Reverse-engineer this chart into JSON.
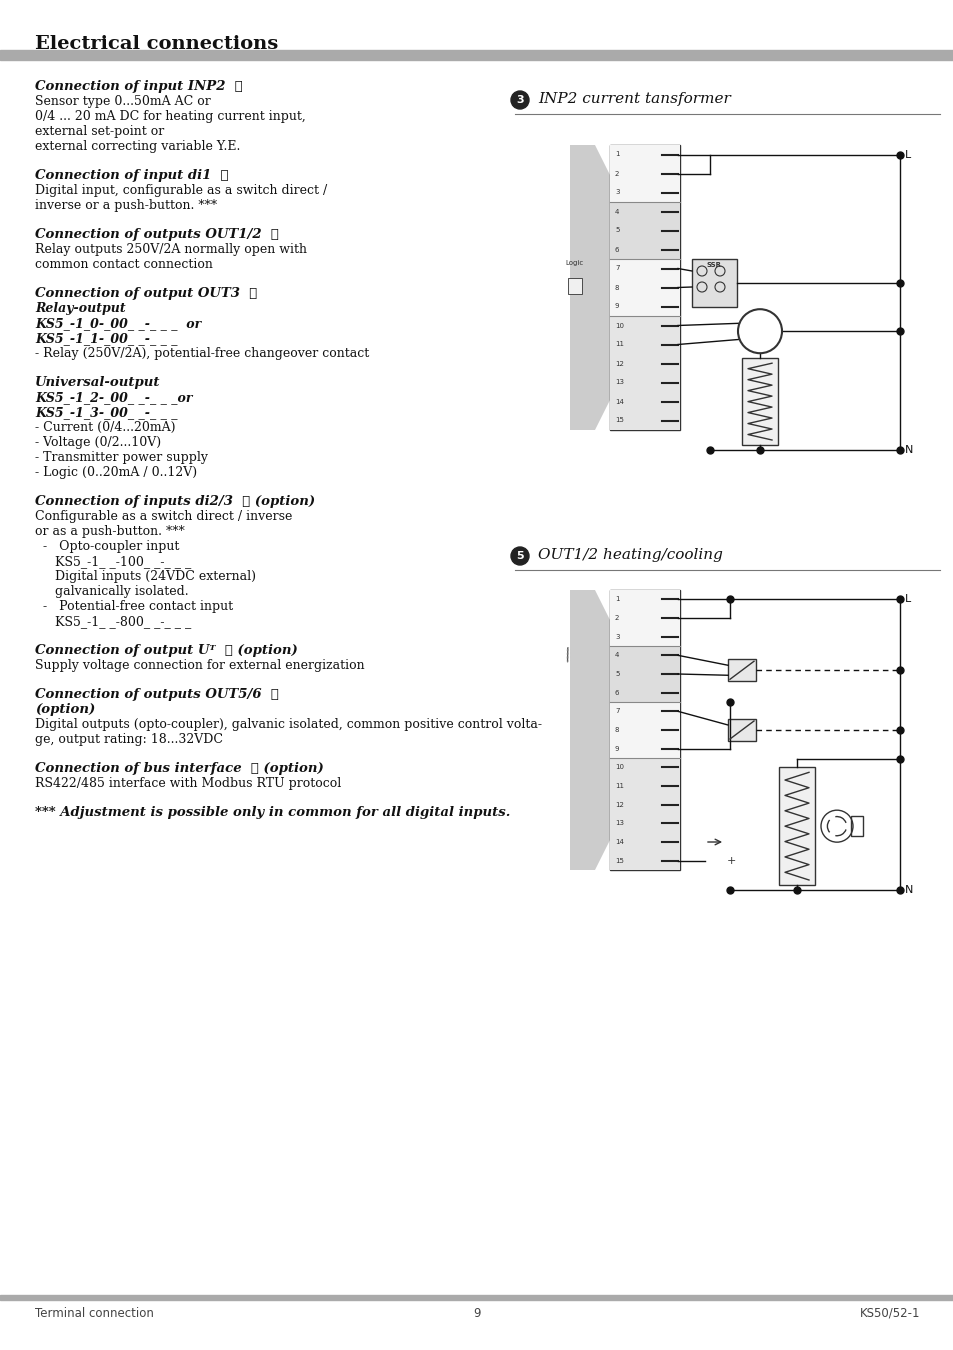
{
  "title": "Electrical connections",
  "footer_left": "Terminal connection",
  "footer_center": "9",
  "footer_right": "KS50/52-1",
  "bg_color": "#ffffff",
  "header_bar_color": "#aaaaaa",
  "footer_bar_color": "#aaaaaa",
  "diagram1_title_num": "3",
  "diagram1_title_text": "INP2 current tansformer",
  "diagram2_title_num": "5",
  "diagram2_title_text": "OUT1/2 heating/cooling",
  "left_col_blocks": [
    {
      "lines": [
        {
          "text": "Connection of input INP2  ④",
          "bold_italic": true,
          "size": 9.5,
          "indent": 0
        },
        {
          "text": "Sensor type 0...50mA AC or",
          "bold_italic": false,
          "size": 9.0,
          "indent": 0
        },
        {
          "text": "0/4 ... 20 mA DC for heating current input,",
          "bold_italic": false,
          "size": 9.0,
          "indent": 0
        },
        {
          "text": "external set-point or",
          "bold_italic": false,
          "size": 9.0,
          "indent": 0
        },
        {
          "text": "external correcting variable Y.E.",
          "bold_italic": false,
          "size": 9.0,
          "indent": 0
        }
      ]
    },
    {
      "lines": [
        {
          "text": "Connection of input di1  ⑤",
          "bold_italic": true,
          "size": 9.5,
          "indent": 0
        },
        {
          "text": "Digital input, configurable as a switch direct /",
          "bold_italic": false,
          "size": 9.0,
          "indent": 0
        },
        {
          "text": "inverse or a push-button. ***",
          "bold_italic": false,
          "size": 9.0,
          "indent": 0
        }
      ]
    },
    {
      "lines": [
        {
          "text": "Connection of outputs OUT1/2  ⑥",
          "bold_italic": true,
          "size": 9.5,
          "indent": 0
        },
        {
          "text": "Relay outputs 250V/2A normally open with",
          "bold_italic": false,
          "size": 9.0,
          "indent": 0
        },
        {
          "text": "common contact connection",
          "bold_italic": false,
          "size": 9.0,
          "indent": 0
        }
      ]
    },
    {
      "lines": [
        {
          "text": "Connection of output OUT3  ⑦",
          "bold_italic": true,
          "size": 9.5,
          "indent": 0
        },
        {
          "text": "Relay-output",
          "bold_italic": true,
          "size": 9.0,
          "indent": 0
        },
        {
          "text": "KS5_-1_0-_00_ _-_ _ _  or",
          "bold_italic": true,
          "size": 9.0,
          "indent": 0
        },
        {
          "text": "KS5_-1_1-_00_ _-_ _ _",
          "bold_italic": true,
          "size": 9.0,
          "indent": 0
        },
        {
          "text": "- Relay (250V/2A), potential-free changeover contact",
          "bold_italic": false,
          "size": 9.0,
          "indent": 0
        }
      ]
    },
    {
      "lines": [
        {
          "text": "Universal-output",
          "bold_italic": true,
          "size": 9.5,
          "indent": 0
        },
        {
          "text": "KS5_-1_2-_00_ _-_ _ _or",
          "bold_italic": true,
          "size": 9.0,
          "indent": 0
        },
        {
          "text": "KS5_-1_3-_00_ _-_ _ _",
          "bold_italic": true,
          "size": 9.0,
          "indent": 0
        },
        {
          "text": "- Current (0/4...20mA)",
          "bold_italic": false,
          "size": 9.0,
          "indent": 0
        },
        {
          "text": "- Voltage (0/2...10V)",
          "bold_italic": false,
          "size": 9.0,
          "indent": 0
        },
        {
          "text": "- Transmitter power supply",
          "bold_italic": false,
          "size": 9.0,
          "indent": 0
        },
        {
          "text": "- Logic (0..20mA / 0..12V)",
          "bold_italic": false,
          "size": 9.0,
          "indent": 0
        }
      ]
    },
    {
      "lines": [
        {
          "text": "Connection of inputs di2/3  ⑧ (option)",
          "bold_italic": true,
          "size": 9.5,
          "indent": 0
        },
        {
          "text": "Configurable as a switch direct / inverse",
          "bold_italic": false,
          "size": 9.0,
          "indent": 0
        },
        {
          "text": "or as a push-button. ***",
          "bold_italic": false,
          "size": 9.0,
          "indent": 0
        },
        {
          "text": "-   Opto-coupler input",
          "bold_italic": false,
          "size": 9.0,
          "indent": 8
        },
        {
          "text": "KS5_-1_ _-100_ _-_ _ _",
          "bold_italic": false,
          "size": 9.0,
          "indent": 20
        },
        {
          "text": "Digital inputs (24VDC external)",
          "bold_italic": false,
          "size": 9.0,
          "indent": 20
        },
        {
          "text": "galvanically isolated.",
          "bold_italic": false,
          "size": 9.0,
          "indent": 20
        },
        {
          "text": "-   Potential-free contact input",
          "bold_italic": false,
          "size": 9.0,
          "indent": 8
        },
        {
          "text": "KS5_-1_ _-800_ _-_ _ _",
          "bold_italic": false,
          "size": 9.0,
          "indent": 20
        }
      ]
    },
    {
      "lines": [
        {
          "text": "Connection of output Uᵀ  ⑨ (option)",
          "bold_italic": true,
          "size": 9.5,
          "indent": 0
        },
        {
          "text": "Supply voltage connection for external energization",
          "bold_italic": false,
          "size": 9.0,
          "indent": 0
        }
      ]
    },
    {
      "lines": [
        {
          "text": "Connection of outputs OUT5/6  ⑩",
          "bold_italic": true,
          "size": 9.5,
          "indent": 0
        },
        {
          "text": "(option)",
          "bold_italic": true,
          "size": 9.5,
          "indent": 0
        },
        {
          "text": "Digital outputs (opto-coupler), galvanic isolated, common positive control volta-",
          "bold_italic": false,
          "size": 9.0,
          "indent": 0
        },
        {
          "text": "ge, output rating: 18...32VDC",
          "bold_italic": false,
          "size": 9.0,
          "indent": 0
        }
      ]
    },
    {
      "lines": [
        {
          "text": "Connection of bus interface  ⓔ (option)",
          "bold_italic": true,
          "size": 9.5,
          "indent": 0
        },
        {
          "text": "RS422/485 interface with Modbus RTU protocol",
          "bold_italic": false,
          "size": 9.0,
          "indent": 0
        }
      ]
    },
    {
      "lines": [
        {
          "text": "*** Adjustment is possible only in common for all digital inputs.",
          "bold_italic": true,
          "size": 9.5,
          "indent": 0
        }
      ]
    }
  ]
}
